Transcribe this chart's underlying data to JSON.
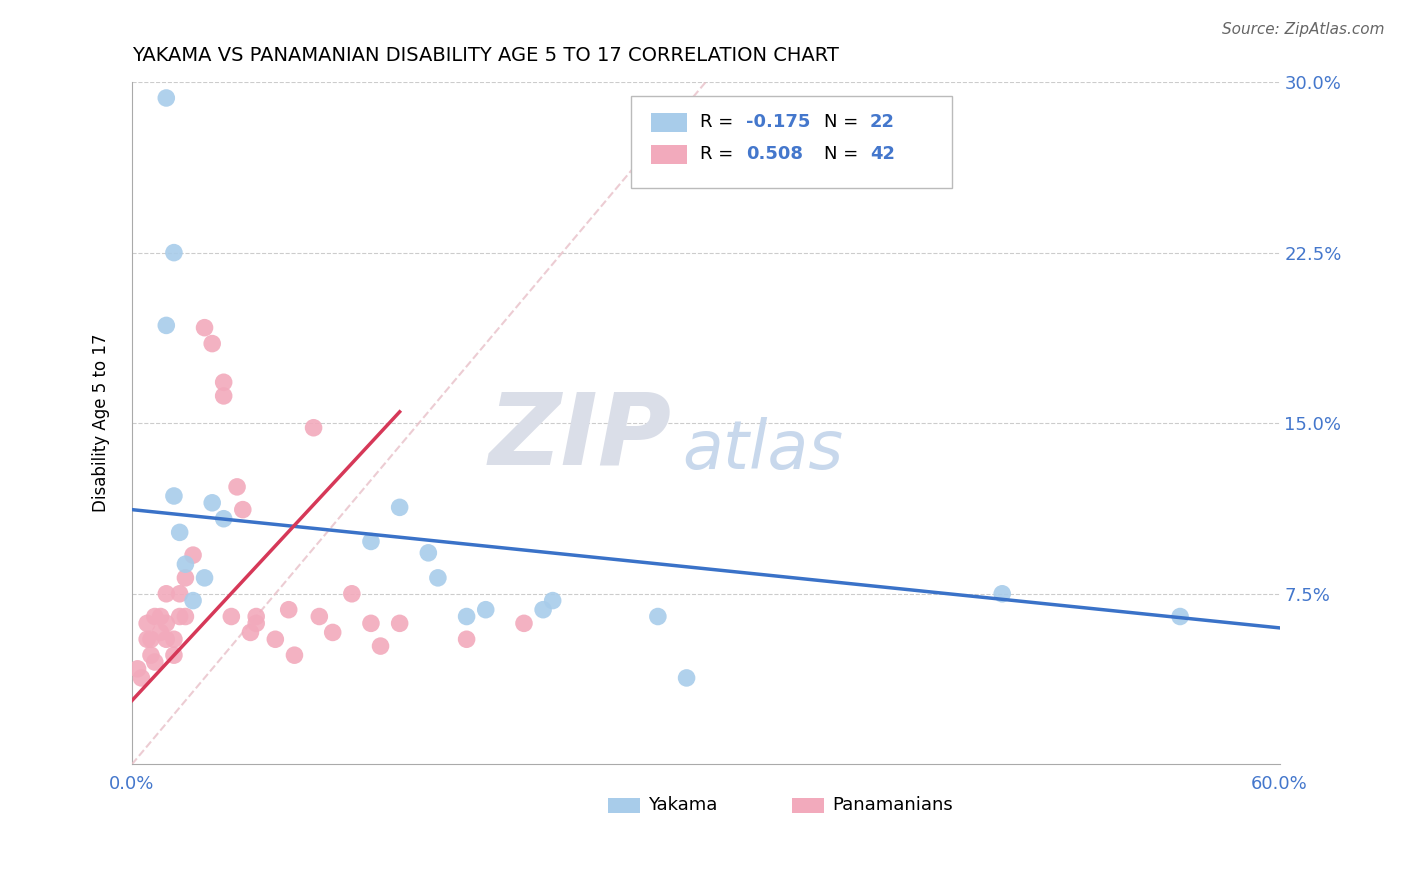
{
  "title": "YAKAMA VS PANAMANIAN DISABILITY AGE 5 TO 17 CORRELATION CHART",
  "source": "Source: ZipAtlas.com",
  "ylabel": "Disability Age 5 to 17",
  "xlim": [
    0.0,
    0.6
  ],
  "ylim": [
    0.0,
    0.3
  ],
  "yticks": [
    0.0,
    0.075,
    0.15,
    0.225,
    0.3
  ],
  "ytick_labels": [
    "",
    "7.5%",
    "15.0%",
    "22.5%",
    "30.0%"
  ],
  "xticks": [
    0.0,
    0.15,
    0.3,
    0.45,
    0.6
  ],
  "xtick_labels": [
    "0.0%",
    "",
    "",
    "",
    "60.0%"
  ],
  "blue_R": -0.175,
  "blue_N": 22,
  "pink_R": 0.508,
  "pink_N": 42,
  "blue_color": "#A8CCEA",
  "pink_color": "#F2AABC",
  "blue_line_color": "#3A72C8",
  "pink_line_color": "#D63858",
  "diag_color": "#E8C0C8",
  "grid_color": "#CCCCCC",
  "blue_x": [
    0.018,
    0.018,
    0.022,
    0.022,
    0.025,
    0.028,
    0.032,
    0.038,
    0.042,
    0.048,
    0.125,
    0.14,
    0.155,
    0.16,
    0.175,
    0.185,
    0.215,
    0.22,
    0.275,
    0.29,
    0.455,
    0.548
  ],
  "blue_y": [
    0.293,
    0.193,
    0.225,
    0.118,
    0.102,
    0.088,
    0.072,
    0.082,
    0.115,
    0.108,
    0.098,
    0.113,
    0.093,
    0.082,
    0.065,
    0.068,
    0.068,
    0.072,
    0.065,
    0.038,
    0.075,
    0.065
  ],
  "pink_x": [
    0.003,
    0.005,
    0.008,
    0.008,
    0.01,
    0.01,
    0.012,
    0.012,
    0.015,
    0.015,
    0.018,
    0.018,
    0.018,
    0.022,
    0.022,
    0.025,
    0.025,
    0.028,
    0.028,
    0.032,
    0.038,
    0.042,
    0.048,
    0.048,
    0.052,
    0.055,
    0.058,
    0.062,
    0.065,
    0.065,
    0.075,
    0.082,
    0.085,
    0.095,
    0.098,
    0.105,
    0.115,
    0.125,
    0.13,
    0.14,
    0.175,
    0.205
  ],
  "pink_y": [
    0.042,
    0.038,
    0.062,
    0.055,
    0.048,
    0.055,
    0.045,
    0.065,
    0.058,
    0.065,
    0.075,
    0.062,
    0.055,
    0.055,
    0.048,
    0.065,
    0.075,
    0.065,
    0.082,
    0.092,
    0.192,
    0.185,
    0.162,
    0.168,
    0.065,
    0.122,
    0.112,
    0.058,
    0.062,
    0.065,
    0.055,
    0.068,
    0.048,
    0.148,
    0.065,
    0.058,
    0.075,
    0.062,
    0.052,
    0.062,
    0.055,
    0.062
  ],
  "blue_line_x0": 0.0,
  "blue_line_x1": 0.6,
  "blue_line_y0": 0.112,
  "blue_line_y1": 0.06,
  "pink_line_x0": 0.0,
  "pink_line_x1": 0.14,
  "pink_line_y0": 0.028,
  "pink_line_y1": 0.155,
  "watermark_zip": "ZIP",
  "watermark_atlas": "atlas",
  "legend_label_blue": "Yakama",
  "legend_label_pink": "Panamanians"
}
